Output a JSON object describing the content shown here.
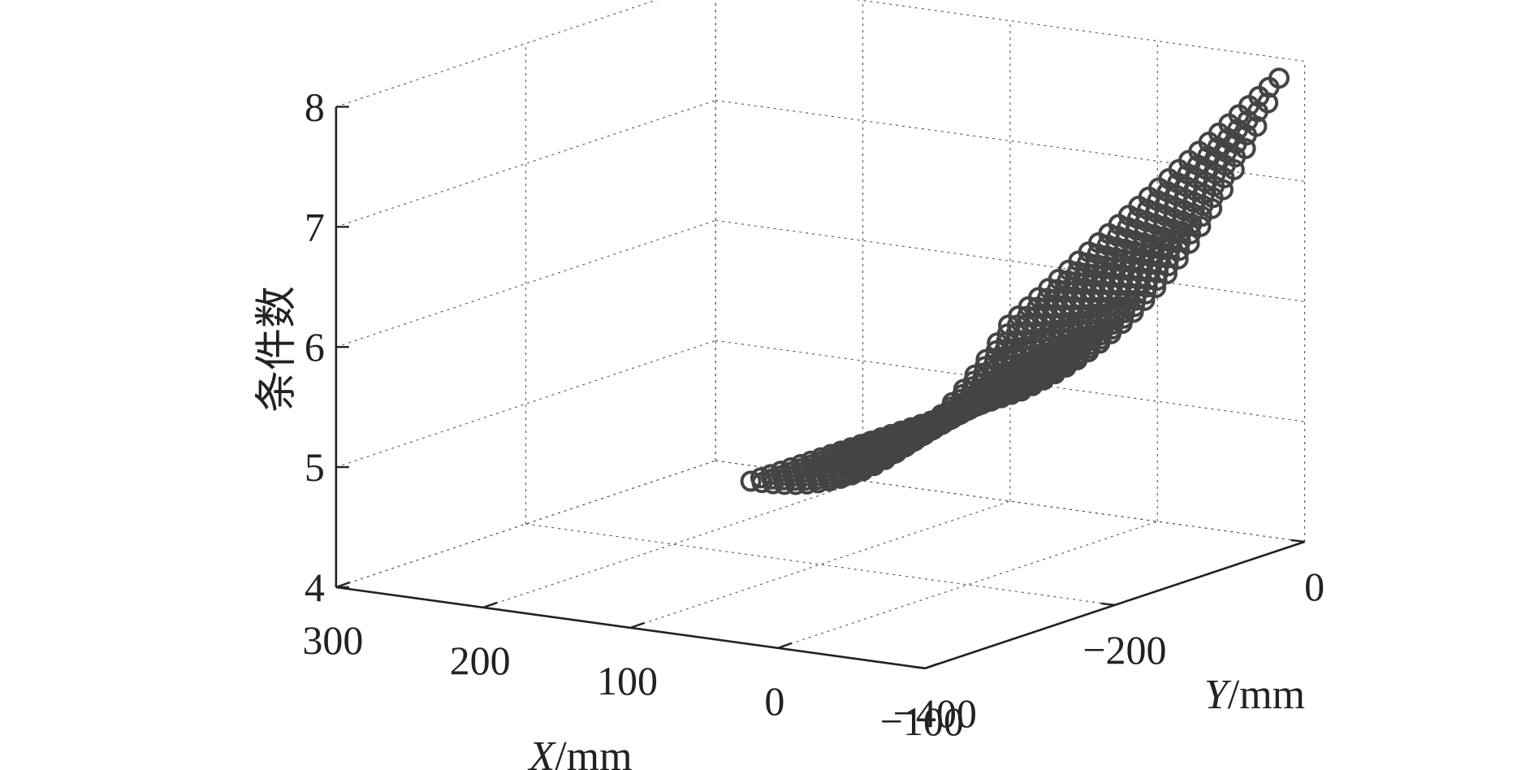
{
  "chart_data": {
    "type": "scatter",
    "projection": "3d",
    "marker": "open-circle",
    "marker_color": "#444444",
    "grid": true,
    "xlabel": {
      "var": "X",
      "unit": "/mm"
    },
    "ylabel": {
      "var": "Y",
      "unit": "/mm"
    },
    "zlabel": "条件数",
    "xlim": [
      -100,
      300
    ],
    "ylim": [
      -400,
      0
    ],
    "zlim": [
      4,
      8
    ],
    "x_ticks": [
      {
        "value": 300,
        "label": "300"
      },
      {
        "value": 200,
        "label": "200"
      },
      {
        "value": 100,
        "label": "100"
      },
      {
        "value": 0,
        "label": "0"
      },
      {
        "value": -100,
        "label": "−100"
      }
    ],
    "y_ticks": [
      {
        "value": -400,
        "label": "−400"
      },
      {
        "value": -200,
        "label": "−200"
      },
      {
        "value": 0,
        "label": "0"
      }
    ],
    "z_ticks": [
      {
        "value": 4,
        "label": "4"
      },
      {
        "value": 5,
        "label": "5"
      },
      {
        "value": 6,
        "label": "6"
      },
      {
        "value": 7,
        "label": "7"
      },
      {
        "value": 8,
        "label": "8"
      }
    ],
    "surface": {
      "x_range": [
        -60,
        115
      ],
      "y_range": [
        -250,
        35
      ],
      "z_min": 4.8,
      "z_max": 7.7,
      "x_samples": 24,
      "y_samples": 28
    }
  }
}
